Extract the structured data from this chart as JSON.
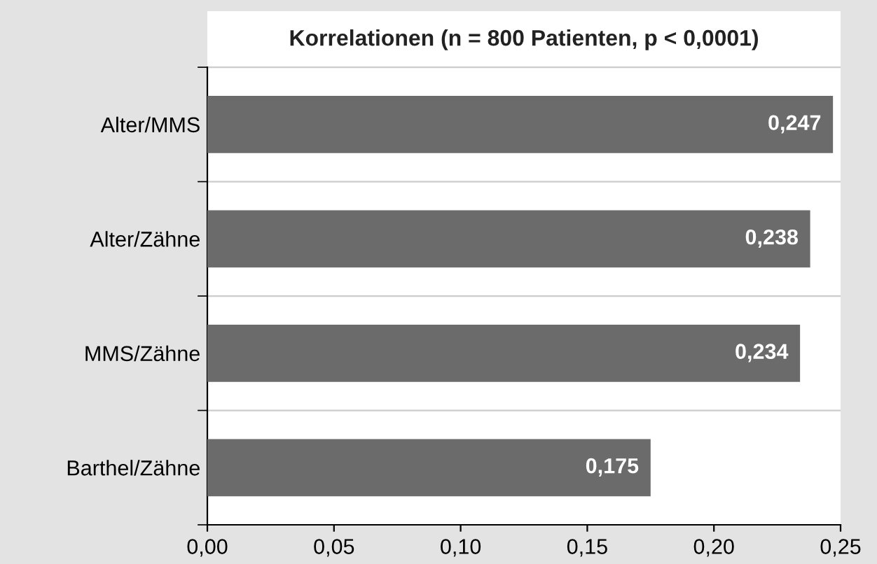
{
  "chart_data": {
    "type": "bar",
    "orientation": "horizontal",
    "title": "Korrelationen (n = 800 Patienten, p < 0,0001)",
    "categories": [
      "Alter/MMS",
      "Alter/Zähne",
      "MMS/Zähne",
      "Barthel/Zähne"
    ],
    "values": [
      0.247,
      0.238,
      0.234,
      0.175
    ],
    "color": "#6b6b6b",
    "data_labels": true,
    "value_labels": [
      "0,247",
      "0,238",
      "0,234",
      "0,175"
    ],
    "xlim": [
      0,
      0.25
    ],
    "xticks": [
      {
        "value": 0,
        "label": "0,00"
      },
      {
        "value": 0.05,
        "label": "0,05"
      },
      {
        "value": 0.1,
        "label": "0,10"
      },
      {
        "value": 0.15,
        "label": "0,15"
      },
      {
        "value": 0.2,
        "label": "0,20"
      },
      {
        "value": 0.25,
        "label": "0,25"
      }
    ],
    "grid": "y"
  }
}
